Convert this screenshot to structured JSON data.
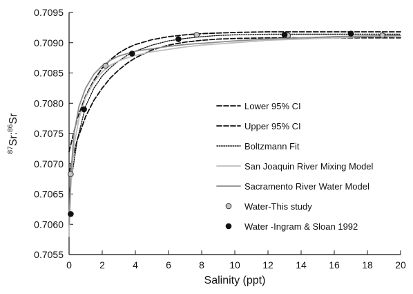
{
  "chart_data": {
    "type": "line",
    "title": "",
    "xlabel": "Salinity (ppt)",
    "ylabel_parts": {
      "sup1": "87",
      "main1": "Sr:",
      "sup2": "86",
      "main2": "Sr"
    },
    "xlim": [
      0,
      20
    ],
    "ylim": [
      0.7055,
      0.7095
    ],
    "grid": false,
    "legend_position": "right-center",
    "x_ticks": [
      0,
      2,
      4,
      6,
      8,
      10,
      12,
      14,
      16,
      18,
      20
    ],
    "x_tick_labels": [
      "0",
      "2",
      "4",
      "6",
      "8",
      "10",
      "12",
      "14",
      "16",
      "18",
      "20"
    ],
    "y_ticks": [
      0.7055,
      0.706,
      0.7065,
      0.707,
      0.7075,
      0.708,
      0.7085,
      0.709,
      0.7095
    ],
    "y_tick_labels": [
      "0.7055",
      "0.7060",
      "0.7065",
      "0.7070",
      "0.7075",
      "0.7080",
      "0.7085",
      "0.7090",
      "0.7095"
    ],
    "series": [
      {
        "name": "Lower 95% CI",
        "kind": "line",
        "color": "#111111",
        "dash": "7,3",
        "x": [
          0,
          0.5,
          1,
          1.5,
          2,
          2.5,
          3,
          3.5,
          4,
          5,
          6,
          7,
          8,
          9,
          10,
          12,
          14,
          16,
          18,
          20
        ],
        "y": [
          0.70685,
          0.7074,
          0.70778,
          0.70805,
          0.70825,
          0.70842,
          0.70855,
          0.70866,
          0.70875,
          0.70888,
          0.70896,
          0.70901,
          0.70904,
          0.70906,
          0.70907,
          0.70908,
          0.70908,
          0.70908,
          0.70908,
          0.70908
        ]
      },
      {
        "name": "Upper 95% CI",
        "kind": "line",
        "color": "#111111",
        "dash": "7,3",
        "x": [
          0,
          0.5,
          1,
          1.5,
          2,
          2.5,
          3,
          3.5,
          4,
          5,
          6,
          7,
          8,
          9,
          10,
          12,
          14,
          16,
          18,
          20
        ],
        "y": [
          0.7072,
          0.70775,
          0.70812,
          0.70838,
          0.70858,
          0.70872,
          0.70883,
          0.70891,
          0.70897,
          0.70905,
          0.7091,
          0.70913,
          0.70915,
          0.70916,
          0.70917,
          0.70918,
          0.70918,
          0.70918,
          0.70918,
          0.70918
        ]
      },
      {
        "name": "Boltzmann Fit",
        "kind": "line",
        "color": "#111111",
        "dash": "1.5,1.8",
        "x": [
          0,
          0.5,
          1,
          1.5,
          2,
          2.5,
          3,
          3.5,
          4,
          5,
          6,
          7,
          8,
          9,
          10,
          12,
          14,
          16,
          18,
          20
        ],
        "y": [
          0.7065,
          0.7074,
          0.70795,
          0.70825,
          0.70845,
          0.70859,
          0.7087,
          0.70879,
          0.70886,
          0.70896,
          0.70903,
          0.70907,
          0.7091,
          0.70912,
          0.70913,
          0.70914,
          0.70914,
          0.70914,
          0.70914,
          0.70914
        ]
      },
      {
        "name": "San Joaquin River Mixing Model",
        "kind": "line",
        "color": "#bdbdbd",
        "dash": "",
        "x": [
          0,
          0.1,
          0.3,
          0.6,
          1,
          1.5,
          2,
          2.5,
          3,
          3.5,
          4,
          5,
          6,
          7,
          8,
          9,
          10,
          12,
          14,
          16,
          18,
          20
        ],
        "y": [
          0.7058,
          0.7066,
          0.7073,
          0.70775,
          0.7081,
          0.70835,
          0.70852,
          0.70863,
          0.7087,
          0.70875,
          0.70879,
          0.70885,
          0.70889,
          0.70893,
          0.70896,
          0.70898,
          0.709,
          0.70904,
          0.70906,
          0.70908,
          0.7091,
          0.70911
        ]
      },
      {
        "name": "Sacramento River Water Model",
        "kind": "line",
        "color": "#8c8c8c",
        "dash": "",
        "x": [
          0,
          0.1,
          0.3,
          0.6,
          1,
          1.5,
          2,
          2.5,
          3,
          3.5,
          4,
          5,
          6,
          7,
          8,
          9,
          10,
          12,
          14,
          16,
          18,
          20
        ],
        "y": [
          0.706,
          0.7068,
          0.7075,
          0.70795,
          0.70825,
          0.70848,
          0.70862,
          0.70871,
          0.70878,
          0.70882,
          0.70886,
          0.7089,
          0.70894,
          0.70897,
          0.70899,
          0.70901,
          0.70903,
          0.70906,
          0.70908,
          0.7091,
          0.70911,
          0.70912
        ]
      },
      {
        "name": "Water-This study",
        "kind": "scatter",
        "marker_fill": "#c4c4c4",
        "marker_stroke": "#333333",
        "x": [
          0.1,
          2.2,
          7.7,
          13.2,
          18.9
        ],
        "y": [
          0.70683,
          0.70862,
          0.70913,
          0.70912,
          0.70912
        ]
      },
      {
        "name": "Water -Ingram & Sloan 1992",
        "kind": "scatter",
        "marker_fill": "#111111",
        "marker_stroke": "#111111",
        "x": [
          0.1,
          0.9,
          3.8,
          6.6,
          13.0,
          17.0
        ],
        "y": [
          0.70617,
          0.7079,
          0.70882,
          0.70906,
          0.70913,
          0.70915
        ]
      }
    ]
  }
}
